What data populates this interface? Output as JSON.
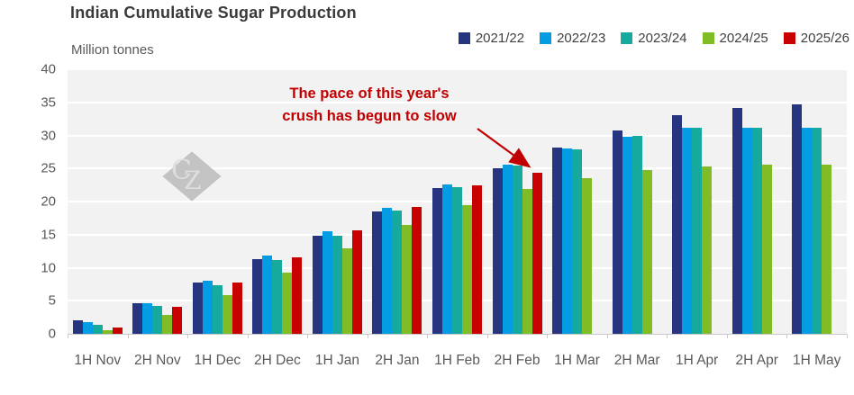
{
  "header": {
    "title": "Indian Cumulative Sugar Production",
    "units_label": "Million tonnes"
  },
  "legend": [
    {
      "label": "2021/22",
      "color": "#273580"
    },
    {
      "label": "2022/23",
      "color": "#049de4"
    },
    {
      "label": "2023/24",
      "color": "#16a99e"
    },
    {
      "label": "2024/25",
      "color": "#7fbc25"
    },
    {
      "label": "2025/26",
      "color": "#c80000"
    }
  ],
  "annotation": {
    "line1": "The pace of this year's",
    "line2": "crush has begun to slow",
    "color": "#c00000"
  },
  "watermark": {
    "text": "CZ"
  },
  "colors": {
    "plot_background": "#f2f2f2",
    "gridline": "#ffffff",
    "axis_line": "#c9c9c9",
    "axis_text": "#595959",
    "title_text": "#3a3a3a",
    "legend_text": "#3f3f3f"
  },
  "chart_data": {
    "type": "bar",
    "title": "Indian Cumulative Sugar Production",
    "ylabel": "Million tonnes",
    "xlabel": "",
    "ylim": [
      0,
      40
    ],
    "yticks": [
      0,
      5,
      10,
      15,
      20,
      25,
      30,
      35,
      40
    ],
    "grid": true,
    "legend_position": "top-right",
    "categories": [
      "1H Nov",
      "2H Nov",
      "1H Dec",
      "2H Dec",
      "1H Jan",
      "2H Jan",
      "1H Feb",
      "2H Feb",
      "1H Mar",
      "2H Mar",
      "1H Apr",
      "2H Apr",
      "1H May"
    ],
    "series": [
      {
        "name": "2021/22",
        "color": "#273580",
        "values": [
          2.1,
          4.6,
          7.7,
          11.3,
          14.9,
          18.5,
          22.0,
          25.1,
          28.2,
          30.8,
          33.0,
          34.1,
          34.7
        ]
      },
      {
        "name": "2022/23",
        "color": "#049de4",
        "values": [
          1.8,
          4.6,
          8.0,
          11.9,
          15.5,
          19.1,
          22.6,
          25.6,
          28.0,
          29.8,
          31.1,
          31.1,
          31.1
        ]
      },
      {
        "name": "2023/24",
        "color": "#16a99e",
        "values": [
          1.4,
          4.2,
          7.3,
          11.1,
          14.8,
          18.6,
          22.2,
          25.4,
          27.9,
          30.0,
          31.1,
          31.1,
          31.1
        ]
      },
      {
        "name": "2024/25",
        "color": "#7fbc25",
        "values": [
          0.6,
          2.8,
          5.9,
          9.3,
          12.9,
          16.4,
          19.4,
          21.9,
          23.5,
          24.8,
          25.3,
          25.6,
          25.6
        ]
      },
      {
        "name": "2025/26",
        "color": "#c80000",
        "values": [
          0.9,
          4.1,
          7.7,
          11.6,
          15.7,
          19.2,
          22.4,
          24.4,
          null,
          null,
          null,
          null,
          null
        ]
      }
    ]
  }
}
